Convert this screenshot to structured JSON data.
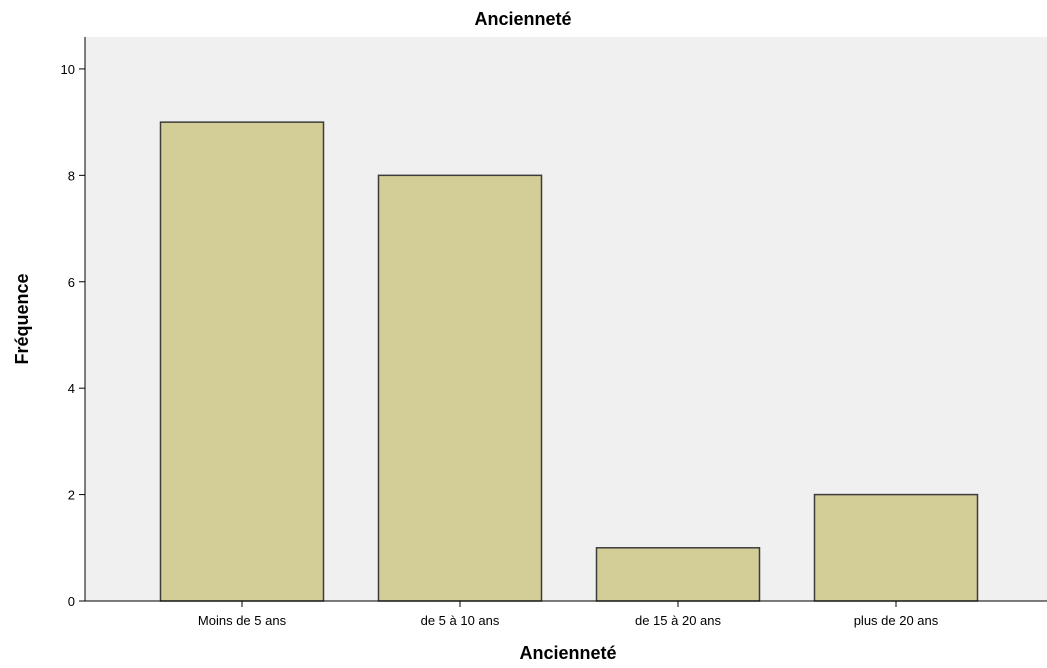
{
  "chart_data": {
    "type": "bar",
    "title": "Ancienneté",
    "xlabel": "Ancienneté",
    "ylabel": "Fréquence",
    "categories": [
      "Moins de 5 ans",
      "de 5 à 10 ans",
      "de 15 à 20 ans",
      "plus de 20 ans"
    ],
    "values": [
      9,
      8,
      1,
      2
    ],
    "ylim": [
      0,
      10.6
    ],
    "yticks": [
      0,
      2,
      4,
      6,
      8,
      10
    ],
    "grid": false,
    "legend": "none"
  },
  "colors": {
    "plot_background": "#f0f0f0",
    "bar_fill": "#d3ce97",
    "bar_stroke": "#3c3c3c",
    "axis": "#000000"
  }
}
